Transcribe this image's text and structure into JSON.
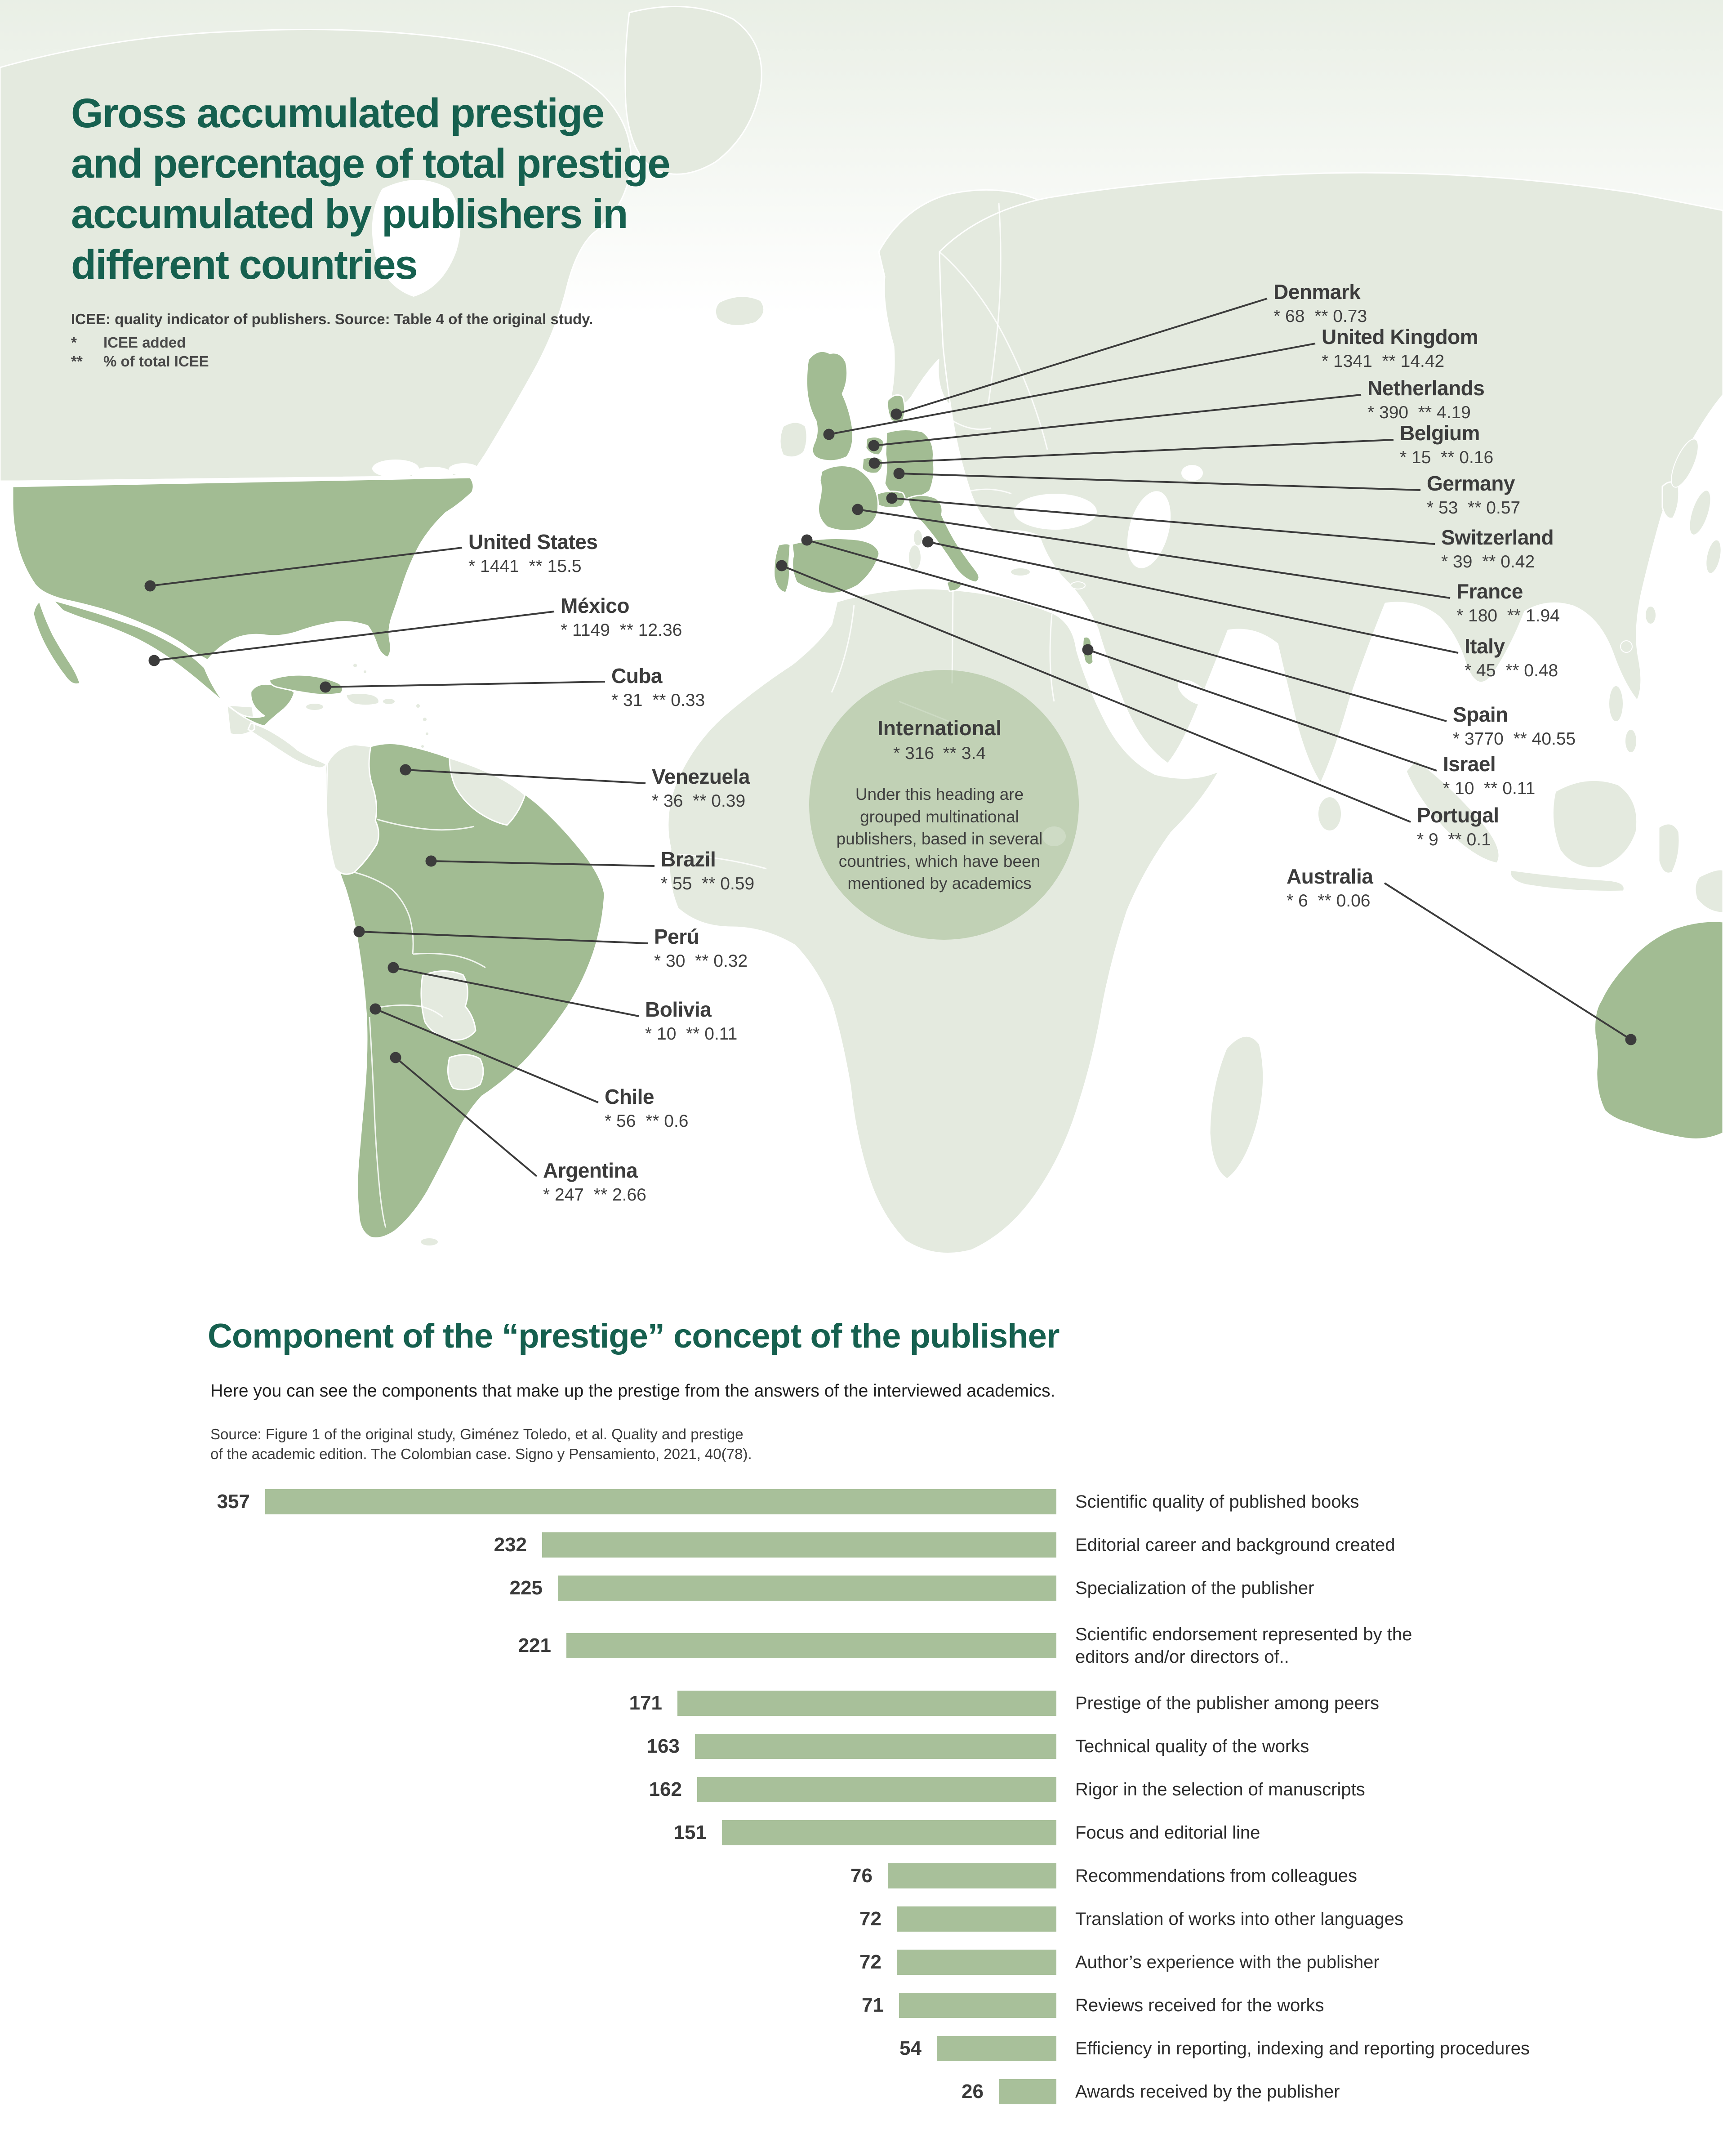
{
  "header": {
    "title": "Gross accumulated prestige\nand percentage of total prestige\naccumulated by publishers in\ndifferent countries",
    "note": "ICEE: quality indicator of publishers. Source: Table 4 of the original study.",
    "marker1": "*",
    "marker2": "**",
    "legend_icee": "ICEE added",
    "legend_pct": "% of total ICEE"
  },
  "section2": {
    "title": "Component of the “prestige” concept of the publisher",
    "subtitle": "Here you can see the components that make up the prestige from the answers of the interviewed academics.",
    "source": "Source: Figure 1 of the original study, Giménez Toledo, et al. Quality and prestige\nof the academic edition. The Colombian case. Signo y Pensamiento, 2021, 40(78)."
  },
  "colors": {
    "accent_teal": "#16604f",
    "country_fill": "#a2bc93",
    "land_fill": "#e4eadf",
    "bar_fill": "#a8c09a",
    "leader_line": "#3c3c3c",
    "text_dark": "#3a3a3a"
  },
  "chart_data": [
    {
      "type": "map",
      "title": "Gross accumulated prestige and percentage of total prestige accumulated by publishers in different countries",
      "value_legend": {
        "*": "ICEE added",
        "**": "% of total ICEE"
      },
      "points": [
        {
          "country": "United States",
          "icee": 1441,
          "pct": "15.5"
        },
        {
          "country": "México",
          "icee": 1149,
          "pct": "12.36"
        },
        {
          "country": "Cuba",
          "icee": 31,
          "pct": "0.33"
        },
        {
          "country": "Venezuela",
          "icee": 36,
          "pct": "0.39"
        },
        {
          "country": "Brazil",
          "icee": 55,
          "pct": "0.59"
        },
        {
          "country": "Perú",
          "icee": 30,
          "pct": "0.32"
        },
        {
          "country": "Bolivia",
          "icee": 10,
          "pct": "0.11"
        },
        {
          "country": "Chile",
          "icee": 56,
          "pct": "0.6"
        },
        {
          "country": "Argentina",
          "icee": 247,
          "pct": "2.66"
        },
        {
          "country": "Denmark",
          "icee": 68,
          "pct": "0.73"
        },
        {
          "country": "United Kingdom",
          "icee": 1341,
          "pct": "14.42"
        },
        {
          "country": "Netherlands",
          "icee": 390,
          "pct": "4.19"
        },
        {
          "country": "Belgium",
          "icee": 15,
          "pct": "0.16"
        },
        {
          "country": "Germany",
          "icee": 53,
          "pct": "0.57"
        },
        {
          "country": "Switzerland",
          "icee": 39,
          "pct": "0.42"
        },
        {
          "country": "France",
          "icee": 180,
          "pct": "1.94"
        },
        {
          "country": "Italy",
          "icee": 45,
          "pct": "0.48"
        },
        {
          "country": "Spain",
          "icee": 3770,
          "pct": "40.55"
        },
        {
          "country": "Israel",
          "icee": 10,
          "pct": "0.11"
        },
        {
          "country": "Portugal",
          "icee": 9,
          "pct": "0.1"
        },
        {
          "country": "Australia",
          "icee": 6,
          "pct": "0.06"
        },
        {
          "country": "International",
          "icee": 316,
          "pct": "3.4",
          "description": "Under this heading are grouped multinational publishers, based in several countries, which have been mentioned by academics"
        }
      ]
    },
    {
      "type": "bar",
      "orientation": "horizontal",
      "title": "Component of the “prestige” concept of the publisher",
      "categories": [
        "Scientific quality of published books",
        "Editorial career and background created",
        "Specialization of the publisher",
        "Scientific endorsement represented by the\neditors and/or directors of..",
        "Prestige of the publisher among peers",
        "Technical quality of the works",
        "Rigor in the selection of manuscripts",
        "Focus and editorial line",
        "Recommendations from colleagues",
        "Translation of works into other languages",
        "Author’s experience with the publisher",
        "Reviews received for the works",
        "Efficiency in reporting, indexing and reporting procedures",
        "Awards received by the publisher"
      ],
      "values": [
        357,
        232,
        225,
        221,
        171,
        163,
        162,
        151,
        76,
        72,
        72,
        71,
        54,
        26
      ],
      "xlim": [
        0,
        357
      ],
      "bar_color": "#a8c09a"
    }
  ]
}
